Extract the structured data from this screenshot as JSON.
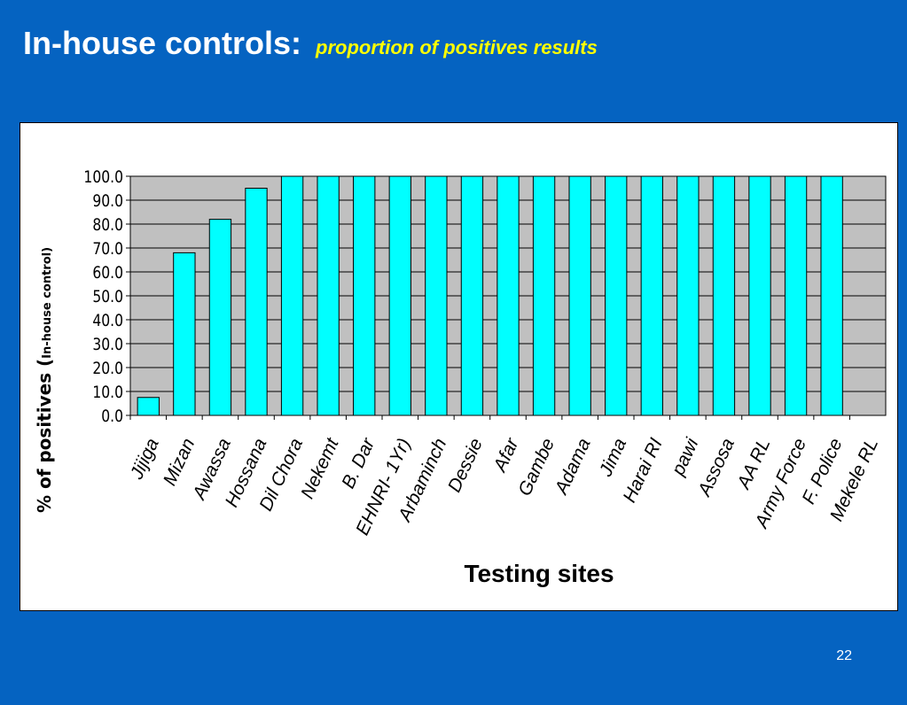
{
  "slide": {
    "title": "In-house controls:",
    "subtitle": "proportion of positives results",
    "page_number": "22"
  },
  "colors": {
    "background": "#0563c1",
    "title": "#ffffff",
    "subtitle": "#ffff00",
    "bar_fill": "#00ffff",
    "plot_area": "#c0c0c0"
  },
  "chart_data": {
    "type": "bar",
    "xlabel": "Testing sites",
    "ylabel_main": "% of positives (",
    "ylabel_small": "In-house control)",
    "ylim": [
      0,
      100
    ],
    "yticks": [
      "0.0",
      "10.0",
      "20.0",
      "30.0",
      "40.0",
      "50.0",
      "60.0",
      "70.0",
      "80.0",
      "90.0",
      "100.0"
    ],
    "grid": true,
    "categories": [
      "Jijiga",
      "Mizan",
      "Awassa",
      "Hossana",
      "Dil Chora",
      "Nekemt",
      "B. Dar",
      "EHNRI- 1Yr)",
      "Arbaminch",
      "Dessie",
      "Afar",
      "Gambe",
      "Adama",
      "Jima",
      "Harai RI",
      "pawi",
      "Assosa",
      "AA RL",
      "Army Force",
      "F. Police",
      "Mekele RL"
    ],
    "values": [
      7.5,
      68,
      82,
      95,
      100,
      100,
      100,
      100,
      100,
      100,
      100,
      100,
      100,
      100,
      100,
      100,
      100,
      100,
      100,
      100,
      null
    ]
  }
}
